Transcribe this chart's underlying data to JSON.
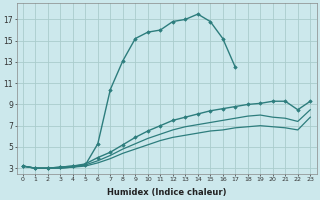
{
  "xlabel": "Humidex (Indice chaleur)",
  "background_color": "#cce8ec",
  "grid_color": "#aacccc",
  "line_color": "#2d7d7d",
  "xlim": [
    -0.5,
    23.5
  ],
  "ylim": [
    2.5,
    18.5
  ],
  "yticks": [
    3,
    5,
    7,
    9,
    11,
    13,
    15,
    17
  ],
  "xticks": [
    0,
    1,
    2,
    3,
    4,
    5,
    6,
    7,
    8,
    9,
    10,
    11,
    12,
    13,
    14,
    15,
    16,
    17,
    18,
    19,
    20,
    21,
    22,
    23
  ],
  "series": [
    {
      "x": [
        0,
        1,
        2,
        3,
        4,
        5,
        6,
        7,
        8,
        9,
        10,
        11,
        12,
        13,
        14,
        15,
        16,
        17
      ],
      "y": [
        3.2,
        3.0,
        3.0,
        3.1,
        3.2,
        3.3,
        5.3,
        10.4,
        13.1,
        15.2,
        15.8,
        16.0,
        16.8,
        17.0,
        17.5,
        16.8,
        15.2,
        12.5
      ],
      "marker": "D",
      "markersize": 1.8,
      "linewidth": 1.0,
      "linestyle": "-"
    },
    {
      "x": [
        0,
        1,
        2,
        3,
        4,
        5,
        6,
        7,
        8,
        9,
        10,
        11,
        12,
        13,
        14,
        15,
        16,
        17,
        18,
        19,
        20,
        21,
        22,
        23
      ],
      "y": [
        3.2,
        3.0,
        3.0,
        3.1,
        3.2,
        3.4,
        4.0,
        4.5,
        5.2,
        5.9,
        6.5,
        7.0,
        7.5,
        7.8,
        8.1,
        8.4,
        8.6,
        8.8,
        9.0,
        9.1,
        9.3,
        9.3,
        8.5,
        9.3
      ],
      "marker": "D",
      "markersize": 1.8,
      "linewidth": 1.0,
      "linestyle": "-"
    },
    {
      "x": [
        0,
        1,
        2,
        3,
        4,
        5,
        6,
        7,
        8,
        9,
        10,
        11,
        12,
        13,
        14,
        15,
        16,
        17,
        18,
        19,
        20,
        21,
        22,
        23
      ],
      "y": [
        3.2,
        3.0,
        3.0,
        3.0,
        3.1,
        3.3,
        3.7,
        4.2,
        4.8,
        5.3,
        5.8,
        6.2,
        6.6,
        6.9,
        7.1,
        7.3,
        7.5,
        7.7,
        7.9,
        8.0,
        7.8,
        7.7,
        7.4,
        8.5
      ],
      "marker": null,
      "markersize": 0,
      "linewidth": 0.9,
      "linestyle": "-"
    },
    {
      "x": [
        0,
        1,
        2,
        3,
        4,
        5,
        6,
        7,
        8,
        9,
        10,
        11,
        12,
        13,
        14,
        15,
        16,
        17,
        18,
        19,
        20,
        21,
        22,
        23
      ],
      "y": [
        3.2,
        3.0,
        3.0,
        3.0,
        3.1,
        3.2,
        3.5,
        3.9,
        4.4,
        4.8,
        5.2,
        5.6,
        5.9,
        6.1,
        6.3,
        6.5,
        6.6,
        6.8,
        6.9,
        7.0,
        6.9,
        6.8,
        6.6,
        7.8
      ],
      "marker": null,
      "markersize": 0,
      "linewidth": 0.9,
      "linestyle": "-"
    }
  ]
}
